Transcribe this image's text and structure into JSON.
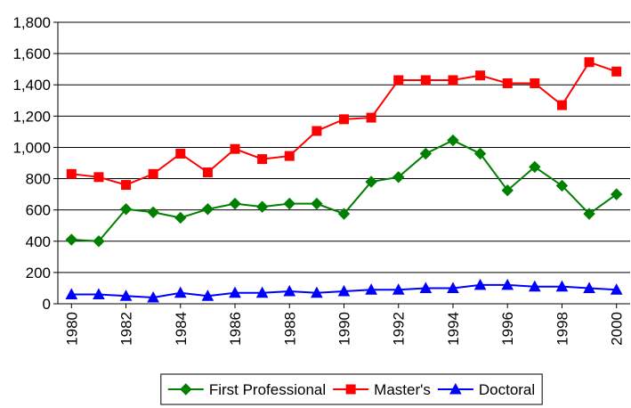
{
  "chart_data": {
    "type": "line",
    "x": [
      1980,
      1981,
      1982,
      1983,
      1984,
      1985,
      1986,
      1987,
      1988,
      1989,
      1990,
      1991,
      1992,
      1993,
      1994,
      1995,
      1996,
      1997,
      1998,
      1999,
      2000
    ],
    "xlim": [
      1979.5,
      2000.5
    ],
    "xticks": [
      1980,
      1982,
      1984,
      1986,
      1988,
      1990,
      1992,
      1994,
      1996,
      1998,
      2000
    ],
    "ylim": [
      0,
      1800
    ],
    "yticks": [
      0,
      200,
      400,
      600,
      800,
      {
        "value": 1000,
        "label": "1,000"
      },
      {
        "value": 1200,
        "label": "1,200"
      },
      {
        "value": 1400,
        "label": "1,400"
      },
      {
        "value": 1600,
        "label": "1,600"
      },
      {
        "value": 1800,
        "label": "1,800"
      }
    ],
    "grid": true,
    "legend": "bottom",
    "series": [
      {
        "name": "First Professional",
        "color": "#008000",
        "marker": "diamond",
        "values": [
          410,
          400,
          605,
          585,
          550,
          605,
          640,
          620,
          640,
          640,
          575,
          780,
          810,
          960,
          1045,
          960,
          725,
          875,
          755,
          575,
          700
        ]
      },
      {
        "name": "Master's",
        "color": "#ff0000",
        "marker": "square",
        "values": [
          830,
          810,
          760,
          830,
          960,
          840,
          990,
          925,
          945,
          1105,
          1180,
          1190,
          1430,
          1430,
          1430,
          1460,
          1410,
          1410,
          1270,
          1545,
          1485
        ]
      },
      {
        "name": "Doctoral",
        "color": "#0000ff",
        "marker": "triangle",
        "values": [
          60,
          60,
          50,
          40,
          70,
          50,
          70,
          70,
          80,
          70,
          80,
          90,
          90,
          100,
          100,
          120,
          120,
          110,
          110,
          100,
          90
        ]
      }
    ]
  }
}
